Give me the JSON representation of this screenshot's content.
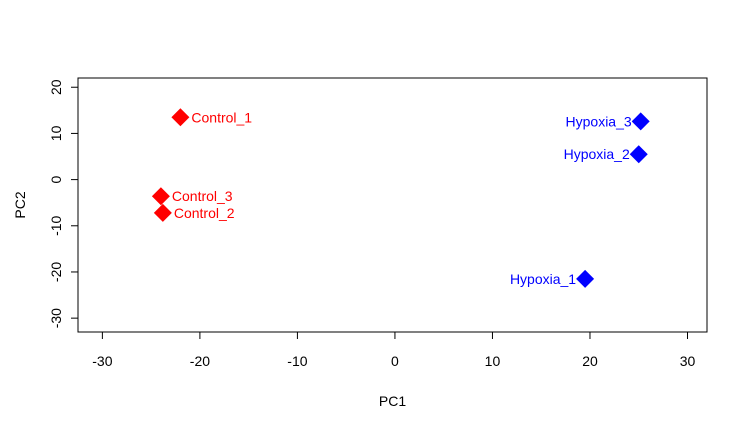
{
  "chart_data": {
    "type": "scatter",
    "title": "",
    "xlabel": "PC1",
    "ylabel": "PC2",
    "xlim": [
      -32.5,
      32
    ],
    "ylim": [
      -33,
      22
    ],
    "x_ticks": [
      -30,
      -20,
      -10,
      0,
      10,
      20,
      30
    ],
    "y_ticks": [
      -30,
      -20,
      -10,
      0,
      10,
      20
    ],
    "grid": false,
    "marker": "diamond",
    "series": [
      {
        "color": "#ff0000",
        "label_side": "right",
        "points": [
          {
            "label": "Control_1",
            "x": -22,
            "y": 13.5
          },
          {
            "label": "Control_3",
            "x": -24,
            "y": -3.6
          },
          {
            "label": "Control_2",
            "x": -23.8,
            "y": -7.2
          }
        ]
      },
      {
        "color": "#0000ff",
        "label_side": "left",
        "points": [
          {
            "label": "Hypoxia_3",
            "x": 25.2,
            "y": 12.6
          },
          {
            "label": "Hypoxia_2",
            "x": 25,
            "y": 5.5
          },
          {
            "label": "Hypoxia_1",
            "x": 19.5,
            "y": -21.5
          }
        ]
      }
    ]
  }
}
